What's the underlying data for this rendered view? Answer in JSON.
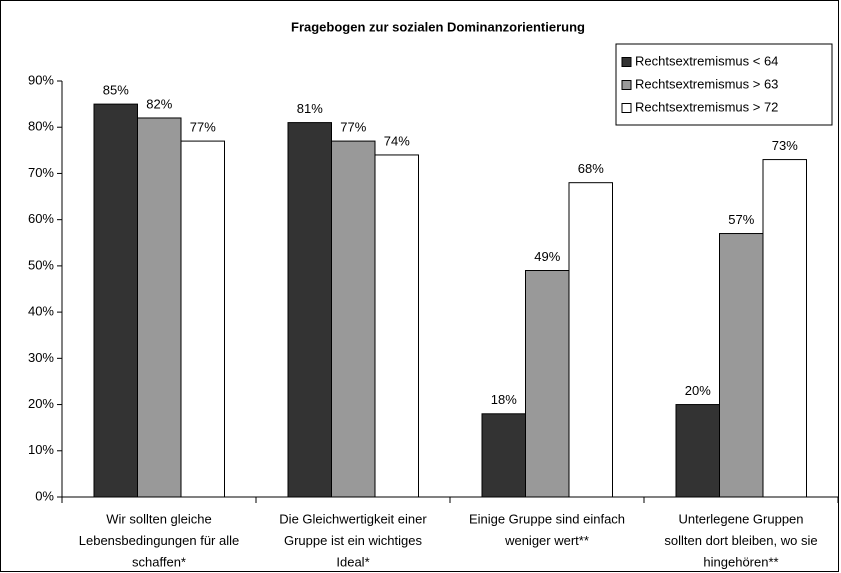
{
  "chart_data": {
    "type": "bar",
    "title": "Fragebogen zur sozialen Dominanzorientierung",
    "categories": [
      [
        "Wir sollten gleiche",
        "Lebensbedingungen für alle",
        "schaffen*"
      ],
      [
        "Die Gleichwertigkeit einer",
        "Gruppe ist ein wichtiges",
        "Ideal*"
      ],
      [
        "Einige Gruppe sind einfach",
        "weniger wert**"
      ],
      [
        "Unterlegene Gruppen",
        "sollten dort bleiben, wo sie",
        "hingehören**"
      ]
    ],
    "series": [
      {
        "name": "Rechtsextremismus < 64",
        "color": "#333333",
        "values": [
          85,
          81,
          18,
          20
        ],
        "value_labels": [
          "85%",
          "81%",
          "18%",
          "20%"
        ]
      },
      {
        "name": "Rechtsextremismus > 63",
        "color": "#999999",
        "values": [
          82,
          77,
          49,
          57
        ],
        "value_labels": [
          "82%",
          "77%",
          "49%",
          "57%"
        ]
      },
      {
        "name": "Rechtsextremismus > 72",
        "color": "#ffffff",
        "values": [
          77,
          74,
          68,
          73
        ],
        "value_labels": [
          "77%",
          "74%",
          "68%",
          "73%"
        ]
      }
    ],
    "ylim": [
      0,
      90
    ],
    "yticks": [
      {
        "value": 0,
        "label": "0%"
      },
      {
        "value": 10,
        "label": "10%"
      },
      {
        "value": 20,
        "label": "20%"
      },
      {
        "value": 30,
        "label": "30%"
      },
      {
        "value": 40,
        "label": "40%"
      },
      {
        "value": 50,
        "label": "50%"
      },
      {
        "value": 60,
        "label": "60%"
      },
      {
        "value": 70,
        "label": "70%"
      },
      {
        "value": 80,
        "label": "80%"
      },
      {
        "value": 90,
        "label": "90%"
      }
    ],
    "legend": "top-right",
    "grid": false
  }
}
